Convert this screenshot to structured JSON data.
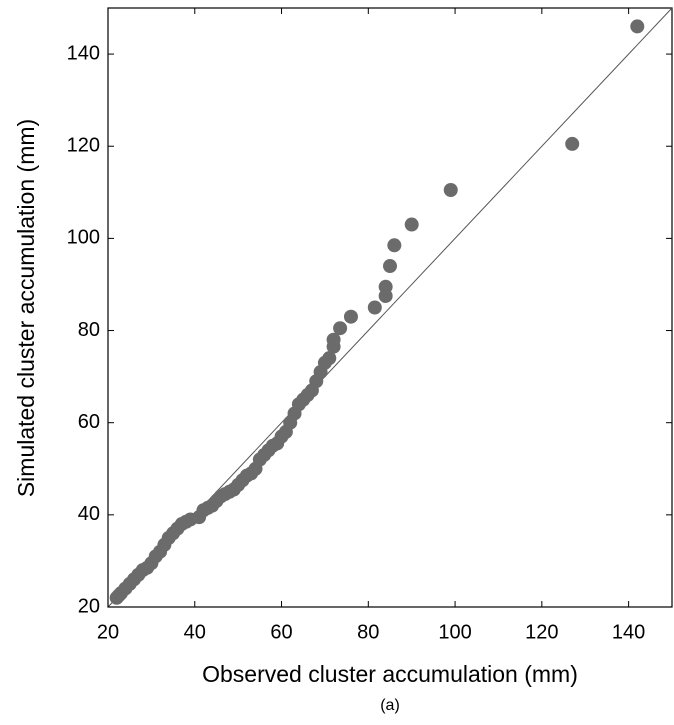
{
  "chart_data": {
    "type": "scatter",
    "x_label": "Observed cluster accumulation (mm)",
    "y_label": "Simulated cluster accumulation (mm)",
    "caption": "(a)",
    "color": "#6b6b6b",
    "x": [
      22,
      22.5,
      23,
      24,
      25,
      26,
      27,
      28,
      29,
      30,
      31,
      32,
      33,
      34,
      35,
      36,
      37,
      38,
      39,
      41,
      42,
      43,
      44,
      45,
      46,
      47,
      48,
      49,
      50,
      51,
      52,
      53,
      54,
      55,
      56,
      57,
      58,
      59,
      60,
      61,
      62,
      63,
      64,
      65,
      66,
      67,
      68,
      69,
      70,
      71,
      72,
      72,
      73.5,
      76,
      81.5,
      84,
      84,
      85,
      86,
      90,
      99,
      127,
      142
    ],
    "values": [
      22,
      22.5,
      23,
      24,
      25,
      26,
      27,
      28,
      28.5,
      29.5,
      31,
      32,
      33.5,
      35,
      36,
      37,
      38,
      38.5,
      39,
      39.5,
      41,
      41.5,
      42,
      43,
      44,
      44.5,
      45,
      45.5,
      46.5,
      47.5,
      48.5,
      49,
      50,
      52,
      53,
      54,
      55,
      55.5,
      57,
      58,
      60,
      62,
      64,
      65,
      66,
      67,
      69,
      71,
      73,
      74,
      76.5,
      78,
      80.5,
      83,
      85,
      87.5,
      89.5,
      94,
      98.5,
      103,
      110.5,
      120.5,
      146
    ],
    "xlim": [
      20,
      150
    ],
    "ylim": [
      20,
      150
    ],
    "xticks": [
      20,
      40,
      60,
      80,
      100,
      120,
      140
    ],
    "yticks": [
      20,
      40,
      60,
      80,
      100,
      120,
      140
    ]
  }
}
